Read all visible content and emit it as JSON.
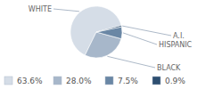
{
  "chart_data": {
    "type": "pie",
    "categories": [
      "WHITE",
      "BLACK",
      "HISPANIC",
      "A.I."
    ],
    "values": [
      63.6,
      28.0,
      7.5,
      0.9
    ],
    "value_labels": [
      "63.6%",
      "28.0%",
      "7.5%",
      "0.9%"
    ],
    "colors": [
      "#d5dde7",
      "#a7b7ca",
      "#6a87a5",
      "#2d4e70"
    ],
    "legend": "bottom"
  }
}
